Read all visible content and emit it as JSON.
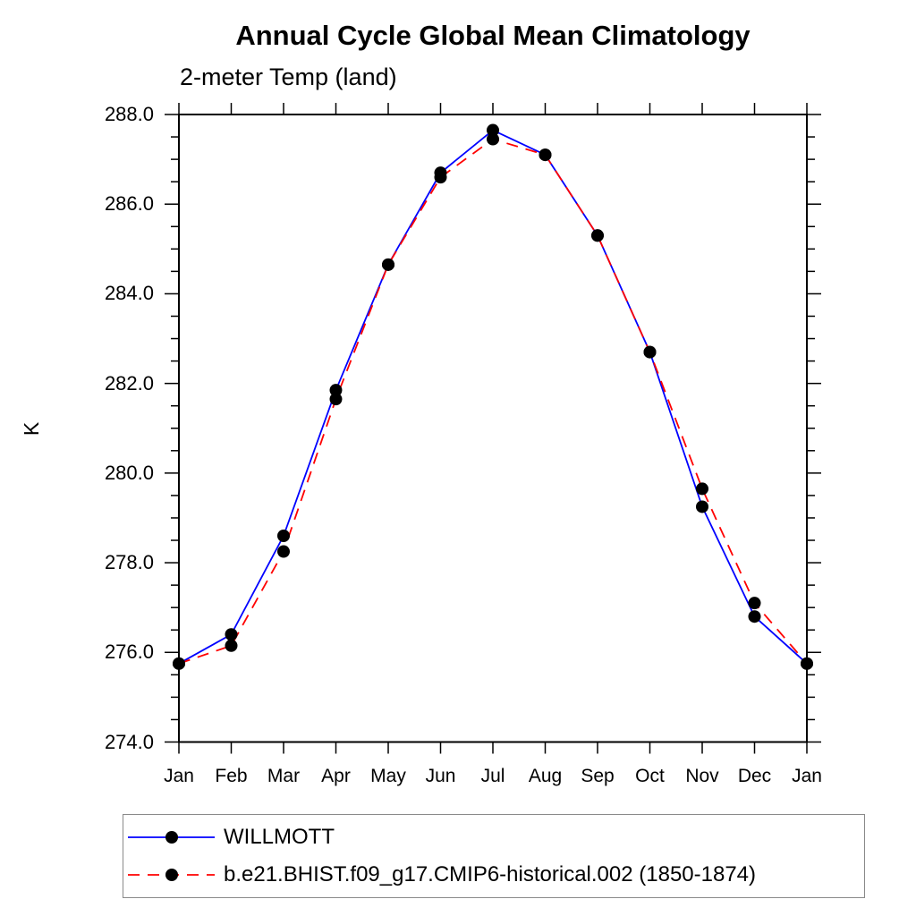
{
  "page": {
    "background": "#ffffff"
  },
  "chart_data": {
    "type": "line",
    "title": "Annual Cycle Global Mean Climatology",
    "subtitle": "2-meter Temp (land)",
    "ylabel": "K",
    "xlabel": "",
    "categories": [
      "Jan",
      "Feb",
      "Mar",
      "Apr",
      "May",
      "Jun",
      "Jul",
      "Aug",
      "Sep",
      "Oct",
      "Nov",
      "Dec",
      "Jan"
    ],
    "ylim": [
      274.0,
      288.0
    ],
    "ytick_step": 2.0,
    "ytick_minor_step": 0.5,
    "yticks": [
      "288.0",
      "286.0",
      "284.0",
      "282.0",
      "280.0",
      "278.0",
      "276.0",
      "274.0"
    ],
    "grid": false,
    "legend_position": "bottom-left",
    "frame_color": "#000000",
    "marker": "filled-circle",
    "marker_color": "#000000",
    "series": [
      {
        "name": "WILLMOTT",
        "color": "#0000ff",
        "style": "solid",
        "values": [
          275.75,
          276.4,
          278.6,
          281.85,
          284.65,
          286.7,
          287.65,
          287.1,
          285.3,
          282.7,
          279.25,
          276.8,
          275.75
        ]
      },
      {
        "name": "b.e21.BHIST.f09_g17.CMIP6-historical.002 (1850-1874)",
        "color": "#ff0000",
        "style": "dashed",
        "values": [
          275.75,
          276.15,
          278.25,
          281.65,
          284.65,
          286.6,
          287.45,
          287.1,
          285.3,
          282.7,
          279.65,
          277.1,
          275.75
        ]
      }
    ]
  }
}
